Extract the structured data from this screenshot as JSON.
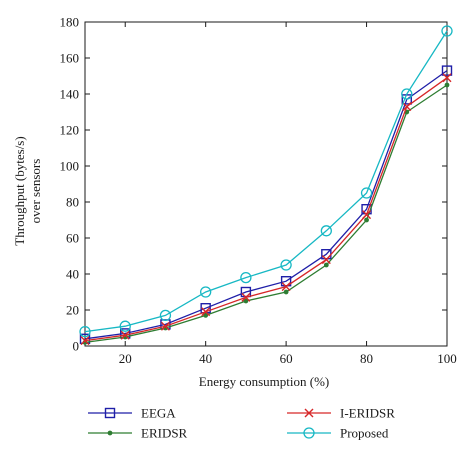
{
  "chart_data": {
    "type": "line",
    "xlabel": "Energy consumption (%)",
    "ylabel_lines": [
      "Throughput (bytes/s)",
      "over sensors"
    ],
    "xlim": [
      10,
      100
    ],
    "ylim": [
      0,
      180
    ],
    "xticks": [
      20,
      40,
      60,
      80,
      100
    ],
    "yticks": [
      0,
      20,
      40,
      60,
      80,
      100,
      120,
      140,
      160,
      180
    ],
    "grid": false,
    "legend_position": "bottom",
    "x": [
      10,
      20,
      30,
      40,
      50,
      60,
      70,
      80,
      90,
      100
    ],
    "series": [
      {
        "name": "EEGA",
        "color": "#1f1fa8",
        "marker": "square",
        "values": [
          4,
          7,
          12,
          21,
          30,
          36,
          51,
          76,
          137,
          153
        ]
      },
      {
        "name": "ERIDSR",
        "color": "#2e7d32",
        "marker": "dot",
        "values": [
          2,
          5,
          10,
          17,
          25,
          30,
          45,
          70,
          130,
          145
        ]
      },
      {
        "name": "I-ERIDSR",
        "color": "#d62728",
        "marker": "x",
        "values": [
          3,
          6,
          11,
          19,
          27,
          33,
          48,
          73,
          133,
          149
        ]
      },
      {
        "name": "Proposed",
        "color": "#17b8c4",
        "marker": "circle",
        "values": [
          8,
          11,
          17,
          30,
          38,
          45,
          64,
          85,
          140,
          175
        ]
      }
    ]
  }
}
